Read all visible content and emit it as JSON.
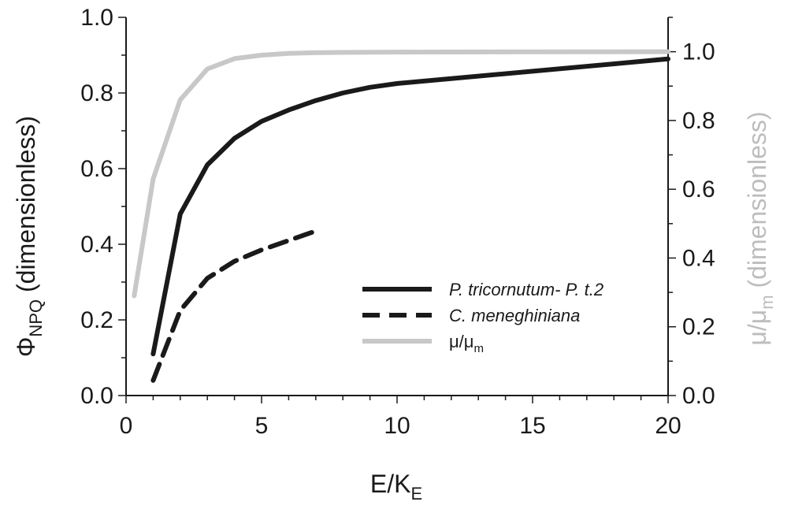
{
  "chart_data": {
    "type": "line",
    "xlabel": {
      "main": "E/K",
      "sub": "E"
    },
    "ylabel_left": {
      "symbol": "Φ",
      "sub": "NPQ",
      "rest": " (dimensionless)"
    },
    "ylabel_right": {
      "main": "μ/μ",
      "sub": "m",
      "rest": " (dimensionless)"
    },
    "xlim": [
      0,
      20
    ],
    "ylim_left": [
      0,
      1.0
    ],
    "ylim_right": [
      0,
      1.1
    ],
    "x_ticks": [
      "0",
      "5",
      "10",
      "15",
      "20"
    ],
    "y_left_ticks": [
      "0.0",
      "0.2",
      "0.4",
      "0.6",
      "0.8",
      "1.0"
    ],
    "y_right_ticks": [
      "0.0",
      "0.2",
      "0.4",
      "0.6",
      "0.8",
      "1.0"
    ],
    "grid": false,
    "legend_position": "lower-right",
    "series": [
      {
        "name": "P. tricornutum- P. t.2",
        "axis": "left",
        "style": "solid",
        "color": "#1a1a1a",
        "italic": true,
        "x": [
          1,
          2,
          3,
          4,
          5,
          6,
          7,
          8,
          9,
          10,
          20
        ],
        "y": [
          0.11,
          0.48,
          0.61,
          0.68,
          0.725,
          0.755,
          0.78,
          0.8,
          0.815,
          0.825,
          0.89
        ]
      },
      {
        "name": "C. meneghiniana",
        "axis": "left",
        "style": "dashed",
        "color": "#1a1a1a",
        "italic": true,
        "x": [
          1,
          2,
          3,
          4,
          5,
          6,
          7
        ],
        "y": [
          0.04,
          0.225,
          0.31,
          0.355,
          0.385,
          0.41,
          0.435
        ]
      },
      {
        "name": "μ/μ",
        "name_sub": "m",
        "axis": "right",
        "style": "solid",
        "color": "#c8c8c8",
        "italic": false,
        "x": [
          0.3,
          1,
          2,
          3,
          4,
          5,
          6,
          7,
          8,
          10,
          20
        ],
        "y": [
          0.29,
          0.63,
          0.86,
          0.95,
          0.98,
          0.99,
          0.995,
          0.997,
          0.998,
          0.999,
          1.0
        ]
      }
    ]
  }
}
